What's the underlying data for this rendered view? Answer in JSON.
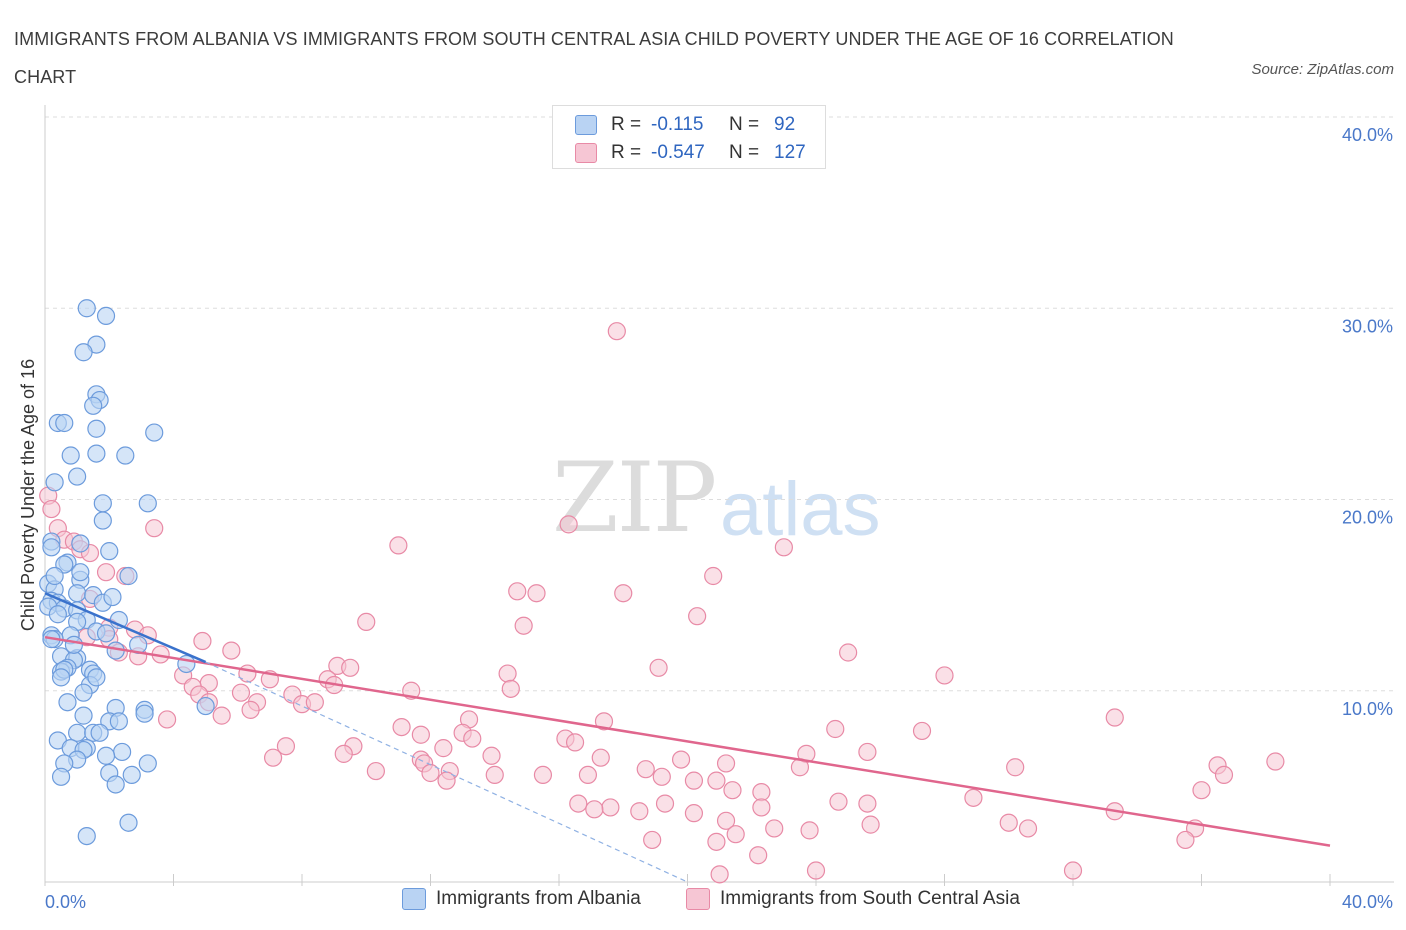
{
  "header": {
    "title": "IMMIGRANTS FROM ALBANIA VS IMMIGRANTS FROM SOUTH CENTRAL ASIA CHILD POVERTY UNDER THE AGE OF 16 CORRELATION CHART",
    "source": "Source: ZipAtlas.com"
  },
  "watermark": {
    "zip": "ZIP",
    "atlas": "atlas"
  },
  "legend": {
    "rows": [
      {
        "r_label": "R =",
        "r_value": "-0.115",
        "n_label": "N =",
        "n_value": "92"
      },
      {
        "r_label": "R =",
        "r_value": "-0.547",
        "n_label": "N =",
        "n_value": "127"
      }
    ]
  },
  "colors": {
    "albania_fill": "#b9d3f3",
    "albania_stroke": "#6c9bdc",
    "albania_line": "#3a72cc",
    "sca_fill": "#f6c6d4",
    "sca_stroke": "#e88aa6",
    "sca_line": "#e0668d",
    "grid": "#dddddd",
    "tick_text": "#4a78c9"
  },
  "chart_data": {
    "type": "scatter",
    "title": "IMMIGRANTS FROM ALBANIA VS IMMIGRANTS FROM SOUTH CENTRAL ASIA CHILD POVERTY UNDER THE AGE OF 16 CORRELATION CHART",
    "xlabel": "",
    "ylabel": "Child Poverty Under the Age of 16",
    "xlim": [
      0,
      40
    ],
    "ylim": [
      0,
      40
    ],
    "x_ticks": [
      "0.0%",
      "40.0%"
    ],
    "y_ticks": [
      {
        "value": 10,
        "label": "10.0%"
      },
      {
        "value": 20,
        "label": "20.0%"
      },
      {
        "value": 30,
        "label": "30.0%"
      },
      {
        "value": 40,
        "label": "40.0%"
      }
    ],
    "grid": true,
    "legend_position": "top-center",
    "series": [
      {
        "name": "Immigrants from Albania",
        "R": -0.115,
        "N": 92,
        "trend": {
          "x": [
            0,
            5
          ],
          "y": [
            15.1,
            11.5
          ]
        },
        "trend_dashed": {
          "x": [
            5,
            20
          ],
          "y": [
            11.5,
            0
          ]
        },
        "points": [
          [
            1.3,
            30.0
          ],
          [
            1.9,
            29.6
          ],
          [
            1.6,
            28.1
          ],
          [
            1.2,
            27.7
          ],
          [
            1.6,
            25.5
          ],
          [
            1.7,
            25.2
          ],
          [
            1.5,
            24.9
          ],
          [
            0.4,
            24.0
          ],
          [
            0.6,
            24.0
          ],
          [
            1.6,
            23.7
          ],
          [
            3.4,
            23.5
          ],
          [
            0.8,
            22.3
          ],
          [
            1.6,
            22.4
          ],
          [
            2.5,
            22.3
          ],
          [
            1.0,
            21.2
          ],
          [
            0.3,
            20.9
          ],
          [
            1.8,
            19.8
          ],
          [
            3.2,
            19.8
          ],
          [
            1.8,
            18.9
          ],
          [
            0.2,
            17.8
          ],
          [
            1.1,
            17.7
          ],
          [
            0.2,
            17.5
          ],
          [
            2.0,
            17.3
          ],
          [
            0.7,
            16.7
          ],
          [
            0.6,
            16.6
          ],
          [
            2.6,
            16.0
          ],
          [
            1.1,
            15.8
          ],
          [
            0.1,
            15.6
          ],
          [
            0.3,
            15.3
          ],
          [
            1.0,
            15.1
          ],
          [
            1.5,
            15.0
          ],
          [
            0.2,
            14.7
          ],
          [
            0.4,
            14.6
          ],
          [
            1.8,
            14.6
          ],
          [
            0.1,
            14.4
          ],
          [
            0.6,
            14.3
          ],
          [
            1.0,
            14.2
          ],
          [
            0.4,
            14.0
          ],
          [
            1.3,
            13.7
          ],
          [
            2.3,
            13.7
          ],
          [
            1.0,
            13.6
          ],
          [
            1.6,
            13.1
          ],
          [
            0.2,
            12.9
          ],
          [
            0.8,
            12.9
          ],
          [
            0.3,
            12.7
          ],
          [
            0.2,
            12.7
          ],
          [
            2.2,
            12.1
          ],
          [
            0.5,
            11.8
          ],
          [
            1.0,
            11.7
          ],
          [
            0.9,
            11.6
          ],
          [
            4.4,
            11.4
          ],
          [
            0.7,
            11.2
          ],
          [
            1.4,
            11.1
          ],
          [
            0.5,
            11.0
          ],
          [
            0.6,
            11.1
          ],
          [
            1.5,
            10.9
          ],
          [
            0.5,
            10.7
          ],
          [
            1.4,
            10.3
          ],
          [
            2.2,
            9.1
          ],
          [
            3.1,
            9.0
          ],
          [
            5.0,
            9.2
          ],
          [
            3.1,
            8.8
          ],
          [
            1.2,
            8.7
          ],
          [
            2.0,
            8.4
          ],
          [
            2.3,
            8.4
          ],
          [
            1.0,
            7.8
          ],
          [
            1.5,
            7.8
          ],
          [
            1.7,
            7.8
          ],
          [
            0.4,
            7.4
          ],
          [
            0.8,
            7.0
          ],
          [
            1.3,
            7.0
          ],
          [
            1.2,
            6.9
          ],
          [
            2.4,
            6.8
          ],
          [
            1.9,
            6.6
          ],
          [
            1.0,
            6.4
          ],
          [
            3.2,
            6.2
          ],
          [
            0.6,
            6.2
          ],
          [
            2.0,
            5.7
          ],
          [
            2.7,
            5.6
          ],
          [
            0.5,
            5.5
          ],
          [
            2.2,
            5.1
          ],
          [
            2.6,
            3.1
          ],
          [
            1.3,
            2.4
          ],
          [
            1.6,
            10.7
          ],
          [
            0.9,
            12.4
          ],
          [
            1.9,
            13.0
          ],
          [
            0.3,
            16.0
          ],
          [
            2.1,
            14.9
          ],
          [
            1.2,
            9.9
          ],
          [
            0.7,
            9.4
          ],
          [
            2.9,
            12.4
          ],
          [
            1.1,
            16.2
          ]
        ]
      },
      {
        "name": "Immigrants from South Central Asia",
        "R": -0.547,
        "N": 127,
        "trend": {
          "x": [
            0,
            40
          ],
          "y": [
            12.8,
            1.9
          ]
        },
        "points": [
          [
            17.8,
            28.8
          ],
          [
            0.1,
            20.2
          ],
          [
            0.2,
            19.5
          ],
          [
            16.3,
            18.7
          ],
          [
            3.4,
            18.5
          ],
          [
            0.4,
            18.5
          ],
          [
            0.6,
            17.9
          ],
          [
            0.9,
            17.8
          ],
          [
            11.0,
            17.6
          ],
          [
            23.0,
            17.5
          ],
          [
            1.1,
            17.4
          ],
          [
            1.4,
            17.2
          ],
          [
            1.9,
            16.2
          ],
          [
            2.5,
            16.0
          ],
          [
            20.8,
            16.0
          ],
          [
            14.7,
            15.2
          ],
          [
            18.0,
            15.1
          ],
          [
            1.4,
            14.8
          ],
          [
            20.3,
            13.9
          ],
          [
            10.0,
            13.6
          ],
          [
            14.9,
            13.4
          ],
          [
            2.0,
            13.3
          ],
          [
            2.8,
            13.2
          ],
          [
            3.2,
            12.9
          ],
          [
            1.3,
            12.8
          ],
          [
            2.0,
            12.7
          ],
          [
            4.9,
            12.6
          ],
          [
            5.8,
            12.1
          ],
          [
            2.3,
            12.0
          ],
          [
            3.6,
            11.9
          ],
          [
            25.0,
            12.0
          ],
          [
            2.9,
            11.8
          ],
          [
            9.1,
            11.3
          ],
          [
            9.5,
            11.2
          ],
          [
            19.1,
            11.2
          ],
          [
            6.3,
            10.9
          ],
          [
            14.4,
            10.9
          ],
          [
            4.3,
            10.8
          ],
          [
            28.0,
            10.8
          ],
          [
            7.0,
            10.6
          ],
          [
            8.8,
            10.6
          ],
          [
            5.1,
            10.4
          ],
          [
            4.6,
            10.2
          ],
          [
            9.0,
            10.3
          ],
          [
            14.5,
            10.1
          ],
          [
            11.4,
            10.0
          ],
          [
            6.1,
            9.9
          ],
          [
            4.8,
            9.8
          ],
          [
            7.7,
            9.8
          ],
          [
            5.1,
            9.4
          ],
          [
            6.6,
            9.4
          ],
          [
            8.0,
            9.3
          ],
          [
            8.4,
            9.4
          ],
          [
            6.4,
            9.0
          ],
          [
            5.5,
            8.7
          ],
          [
            3.8,
            8.5
          ],
          [
            13.2,
            8.5
          ],
          [
            17.4,
            8.4
          ],
          [
            11.1,
            8.1
          ],
          [
            33.3,
            8.6
          ],
          [
            24.6,
            8.0
          ],
          [
            27.3,
            7.9
          ],
          [
            13.0,
            7.8
          ],
          [
            11.7,
            7.7
          ],
          [
            16.2,
            7.5
          ],
          [
            16.5,
            7.3
          ],
          [
            7.5,
            7.1
          ],
          [
            9.6,
            7.1
          ],
          [
            12.4,
            7.0
          ],
          [
            13.3,
            7.5
          ],
          [
            25.6,
            6.8
          ],
          [
            9.3,
            6.7
          ],
          [
            23.7,
            6.7
          ],
          [
            13.9,
            6.6
          ],
          [
            7.1,
            6.5
          ],
          [
            17.3,
            6.5
          ],
          [
            11.7,
            6.4
          ],
          [
            11.8,
            6.2
          ],
          [
            19.8,
            6.4
          ],
          [
            21.2,
            6.2
          ],
          [
            30.2,
            6.0
          ],
          [
            36.5,
            6.1
          ],
          [
            23.5,
            6.0
          ],
          [
            18.7,
            5.9
          ],
          [
            10.3,
            5.8
          ],
          [
            12.0,
            5.7
          ],
          [
            12.6,
            5.8
          ],
          [
            14.0,
            5.6
          ],
          [
            15.5,
            5.6
          ],
          [
            16.9,
            5.6
          ],
          [
            19.2,
            5.5
          ],
          [
            20.2,
            5.3
          ],
          [
            20.9,
            5.3
          ],
          [
            12.5,
            5.3
          ],
          [
            36.7,
            5.6
          ],
          [
            21.4,
            4.8
          ],
          [
            36.0,
            4.8
          ],
          [
            22.3,
            4.7
          ],
          [
            28.9,
            4.4
          ],
          [
            24.7,
            4.2
          ],
          [
            25.6,
            4.1
          ],
          [
            16.6,
            4.1
          ],
          [
            19.3,
            4.1
          ],
          [
            17.6,
            3.9
          ],
          [
            22.3,
            3.9
          ],
          [
            17.1,
            3.8
          ],
          [
            18.5,
            3.7
          ],
          [
            20.2,
            3.6
          ],
          [
            33.3,
            3.7
          ],
          [
            30.0,
            3.1
          ],
          [
            21.2,
            3.2
          ],
          [
            30.6,
            2.8
          ],
          [
            22.7,
            2.8
          ],
          [
            25.7,
            3.0
          ],
          [
            35.8,
            2.8
          ],
          [
            23.8,
            2.7
          ],
          [
            21.5,
            2.5
          ],
          [
            18.9,
            2.2
          ],
          [
            20.9,
            2.1
          ],
          [
            35.5,
            2.2
          ],
          [
            22.2,
            1.4
          ],
          [
            32.0,
            0.6
          ],
          [
            24.0,
            0.6
          ],
          [
            21.0,
            0.4
          ],
          [
            38.3,
            6.3
          ],
          [
            15.3,
            15.1
          ]
        ]
      }
    ]
  },
  "bottom_legend": {
    "items": [
      {
        "label": "Immigrants from Albania"
      },
      {
        "label": "Immigrants from South Central Asia"
      }
    ]
  }
}
